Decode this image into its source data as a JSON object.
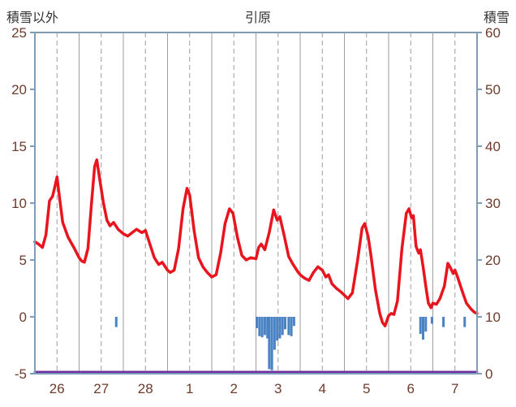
{
  "header": {
    "left_axis_title": "積雪以外",
    "station_title": "引原",
    "right_axis_title": "積雪"
  },
  "chart_data": {
    "type": "line",
    "title": "引原",
    "left_axis": {
      "title": "積雪以外",
      "min": -5,
      "max": 25,
      "ticks": [
        25,
        20,
        15,
        10,
        5,
        0,
        -5
      ]
    },
    "right_axis": {
      "title": "積雪",
      "min": 0,
      "max": 60,
      "ticks": [
        60,
        50,
        40,
        30,
        20,
        10,
        0
      ]
    },
    "x_axis": {
      "labels": [
        "26",
        "27",
        "28",
        "1",
        "2",
        "3",
        "4",
        "5",
        "6",
        "7"
      ],
      "num_days": 10
    },
    "colors": {
      "temperature": "#e8141e",
      "precipitation": "#4a82c4",
      "snow_depth": "#7030a0",
      "axis_labels": "#6e3b2c",
      "border": "#7f9db9",
      "grid": "#9e9e9e"
    },
    "series": [
      {
        "name": "precipitation-bars",
        "type": "bar",
        "axis": "left",
        "baseline": 0,
        "color": "#4a82c4",
        "points": [
          [
            1.84,
            -0.9
          ],
          [
            5.02,
            -1.0
          ],
          [
            5.08,
            -1.7
          ],
          [
            5.14,
            -1.8
          ],
          [
            5.2,
            -1.6
          ],
          [
            5.26,
            -1.9
          ],
          [
            5.3,
            -4.6
          ],
          [
            5.36,
            -4.7
          ],
          [
            5.42,
            -2.9
          ],
          [
            5.48,
            -2.1
          ],
          [
            5.54,
            -1.9
          ],
          [
            5.6,
            -1.6
          ],
          [
            5.66,
            -1.1
          ],
          [
            5.74,
            -1.6
          ],
          [
            5.8,
            -1.7
          ],
          [
            5.86,
            -0.8
          ],
          [
            8.72,
            -1.5
          ],
          [
            8.78,
            -2.0
          ],
          [
            8.84,
            -1.3
          ],
          [
            8.98,
            -0.6
          ],
          [
            9.24,
            -0.9
          ],
          [
            9.72,
            -0.9
          ]
        ]
      },
      {
        "name": "snow-depth-line",
        "type": "line",
        "axis": "right",
        "color": "#7030a0",
        "width": 3,
        "points": [
          [
            0,
            0
          ],
          [
            10,
            0
          ]
        ]
      },
      {
        "name": "temperature-line",
        "type": "line",
        "axis": "left",
        "color": "#e8141e",
        "width": 3.5,
        "points": [
          [
            0,
            6.6
          ],
          [
            0.08,
            6.4
          ],
          [
            0.17,
            6.1
          ],
          [
            0.25,
            7.2
          ],
          [
            0.33,
            10.2
          ],
          [
            0.4,
            10.6
          ],
          [
            0.45,
            11.4
          ],
          [
            0.5,
            12.3
          ],
          [
            0.56,
            10.4
          ],
          [
            0.63,
            8.3
          ],
          [
            0.75,
            7.0
          ],
          [
            0.88,
            6.1
          ],
          [
            1,
            5.2
          ],
          [
            1.06,
            4.9
          ],
          [
            1.12,
            4.8
          ],
          [
            1.2,
            6.0
          ],
          [
            1.28,
            10.0
          ],
          [
            1.35,
            13.2
          ],
          [
            1.4,
            13.8
          ],
          [
            1.47,
            12.0
          ],
          [
            1.55,
            10.0
          ],
          [
            1.63,
            8.5
          ],
          [
            1.7,
            8.0
          ],
          [
            1.78,
            8.3
          ],
          [
            1.88,
            7.7
          ],
          [
            2,
            7.3
          ],
          [
            2.1,
            7.1
          ],
          [
            2.2,
            7.4
          ],
          [
            2.3,
            7.7
          ],
          [
            2.42,
            7.4
          ],
          [
            2.5,
            7.6
          ],
          [
            2.6,
            6.4
          ],
          [
            2.7,
            5.2
          ],
          [
            2.8,
            4.6
          ],
          [
            2.88,
            4.8
          ],
          [
            3,
            4.1
          ],
          [
            3.06,
            3.9
          ],
          [
            3.15,
            4.1
          ],
          [
            3.25,
            6.0
          ],
          [
            3.35,
            9.5
          ],
          [
            3.44,
            11.3
          ],
          [
            3.5,
            10.7
          ],
          [
            3.6,
            7.6
          ],
          [
            3.7,
            5.2
          ],
          [
            3.8,
            4.4
          ],
          [
            3.9,
            3.9
          ],
          [
            4,
            3.5
          ],
          [
            4.1,
            3.7
          ],
          [
            4.2,
            5.6
          ],
          [
            4.3,
            8.2
          ],
          [
            4.4,
            9.5
          ],
          [
            4.48,
            9.1
          ],
          [
            4.58,
            7.0
          ],
          [
            4.68,
            5.4
          ],
          [
            4.78,
            5.0
          ],
          [
            4.88,
            5.2
          ],
          [
            5,
            5.1
          ],
          [
            5.06,
            6.1
          ],
          [
            5.12,
            6.4
          ],
          [
            5.2,
            5.9
          ],
          [
            5.3,
            7.4
          ],
          [
            5.4,
            9.4
          ],
          [
            5.48,
            8.5
          ],
          [
            5.54,
            8.8
          ],
          [
            5.64,
            7.1
          ],
          [
            5.74,
            5.3
          ],
          [
            5.84,
            4.6
          ],
          [
            5.94,
            4.0
          ],
          [
            6,
            3.7
          ],
          [
            6.1,
            3.4
          ],
          [
            6.2,
            3.2
          ],
          [
            6.3,
            3.9
          ],
          [
            6.4,
            4.4
          ],
          [
            6.5,
            4.1
          ],
          [
            6.58,
            3.5
          ],
          [
            6.64,
            3.7
          ],
          [
            6.72,
            2.9
          ],
          [
            6.82,
            2.5
          ],
          [
            6.92,
            2.2
          ],
          [
            7,
            1.9
          ],
          [
            7.08,
            1.6
          ],
          [
            7.18,
            2.1
          ],
          [
            7.3,
            5.0
          ],
          [
            7.4,
            7.8
          ],
          [
            7.46,
            8.2
          ],
          [
            7.54,
            7.0
          ],
          [
            7.6,
            5.4
          ],
          [
            7.7,
            2.4
          ],
          [
            7.8,
            0.3
          ],
          [
            7.86,
            -0.5
          ],
          [
            7.92,
            -0.8
          ],
          [
            8,
            0.1
          ],
          [
            8.06,
            0.3
          ],
          [
            8.12,
            0.2
          ],
          [
            8.2,
            1.4
          ],
          [
            8.3,
            6.0
          ],
          [
            8.4,
            9.1
          ],
          [
            8.46,
            9.5
          ],
          [
            8.52,
            8.7
          ],
          [
            8.56,
            8.9
          ],
          [
            8.62,
            6.2
          ],
          [
            8.68,
            5.6
          ],
          [
            8.72,
            5.9
          ],
          [
            8.78,
            4.4
          ],
          [
            8.84,
            2.7
          ],
          [
            8.9,
            1.2
          ],
          [
            8.96,
            0.8
          ],
          [
            9,
            1.2
          ],
          [
            9.08,
            1.1
          ],
          [
            9.16,
            1.6
          ],
          [
            9.26,
            2.7
          ],
          [
            9.34,
            4.7
          ],
          [
            9.4,
            4.3
          ],
          [
            9.46,
            3.8
          ],
          [
            9.5,
            4.1
          ],
          [
            9.56,
            3.5
          ],
          [
            9.66,
            2.3
          ],
          [
            9.76,
            1.2
          ],
          [
            9.86,
            0.7
          ],
          [
            9.94,
            0.4
          ],
          [
            10,
            0.3
          ]
        ]
      }
    ]
  }
}
